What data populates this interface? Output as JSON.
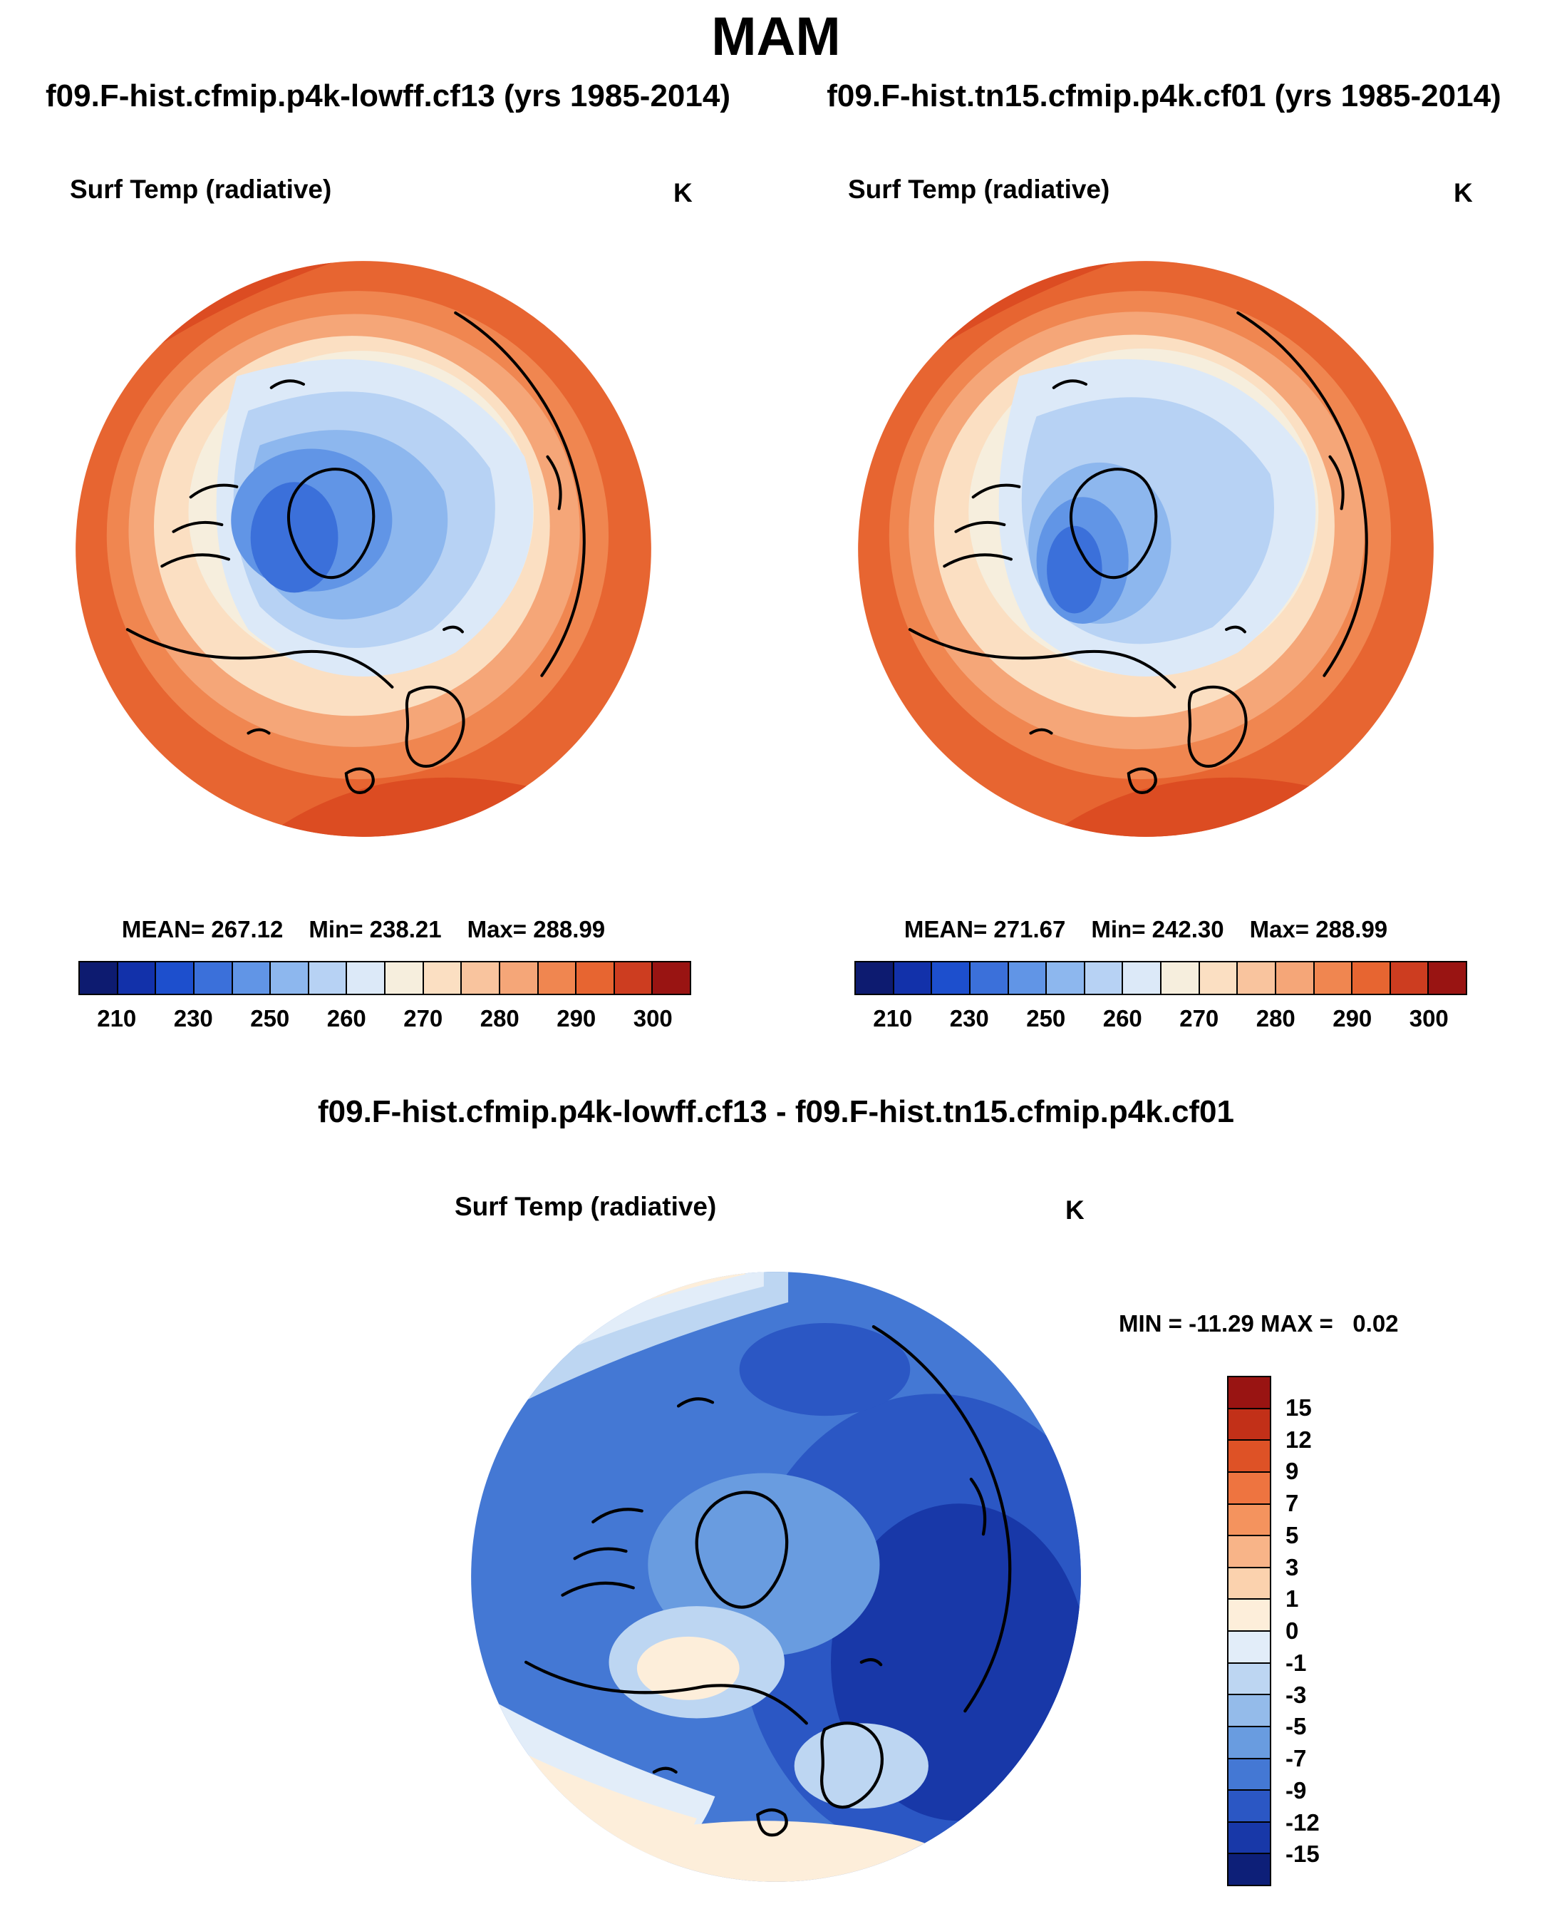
{
  "page": {
    "title": "MAM"
  },
  "left_panel": {
    "subtitle": "f09.F-hist.cfmip.p4k-lowff.cf13 (yrs 1985-2014)",
    "field": "Surf Temp (radiative)",
    "units": "K",
    "mean": "MEAN= 267.12",
    "min": "Min= 238.21",
    "max": "Max= 288.99"
  },
  "right_panel": {
    "subtitle": "f09.F-hist.tn15.cfmip.p4k.cf01 (yrs 1985-2014)",
    "field": "Surf Temp (radiative)",
    "units": "K",
    "mean": "MEAN= 271.67",
    "min": "Min= 242.30",
    "max": "Max= 288.99"
  },
  "diff_panel": {
    "title": "f09.F-hist.cfmip.p4k-lowff.cf13 - f09.F-hist.tn15.cfmip.p4k.cf01",
    "field": "Surf Temp (radiative)",
    "units": "K",
    "min": "MIN = -11.29",
    "max": "MAX =   0.02"
  },
  "temp_colorbar": {
    "ticks": [
      "210",
      "230",
      "250",
      "260",
      "270",
      "280",
      "290",
      "300"
    ],
    "colors": [
      "#0d1b70",
      "#1231aa",
      "#1d4fcd",
      "#3b70da",
      "#6195e6",
      "#8db7ee",
      "#b7d2f4",
      "#dce9f8",
      "#f6eedd",
      "#fbdfc2",
      "#f9c49e",
      "#f5a678",
      "#f08650",
      "#e76531",
      "#cd3d20",
      "#991412"
    ]
  },
  "diff_colorbar": {
    "ticks": [
      "15",
      "12",
      "9",
      "7",
      "5",
      "3",
      "1",
      "0",
      "-1",
      "-3",
      "-5",
      "-7",
      "-9",
      "-12",
      "-15"
    ],
    "colors": [
      "#991412",
      "#c23018",
      "#de5226",
      "#ee7440",
      "#f4935e",
      "#f8b488",
      "#fbd2ae",
      "#fdeeda",
      "#e2edf9",
      "#bdd6f2",
      "#94bbea",
      "#699ce0",
      "#4478d4",
      "#2b57c4",
      "#1838a8",
      "#0d1f78"
    ]
  },
  "chart_data": [
    {
      "type": "heatmap",
      "subtype": "polar-stereographic-map",
      "season": "MAM",
      "title": "f09.F-hist.cfmip.p4k-lowff.cf13 (yrs 1985-2014)",
      "field": "Surf Temp (radiative)",
      "units": "K",
      "stats": {
        "mean": 267.12,
        "min": 238.21,
        "max": 288.99
      },
      "colorbar": {
        "orientation": "horizontal",
        "ticks": [
          210,
          230,
          250,
          260,
          270,
          280,
          290,
          300
        ],
        "colors": [
          "#0d1b70",
          "#1231aa",
          "#1d4fcd",
          "#3b70da",
          "#6195e6",
          "#8db7ee",
          "#b7d2f4",
          "#dce9f8",
          "#f6eedd",
          "#fbdfc2",
          "#f9c49e",
          "#f5a678",
          "#f08650",
          "#e76531",
          "#cd3d20",
          "#991412"
        ]
      },
      "description": "Arctic polar map: cold (blue) values over central Arctic Ocean and Greenland, warm (orange/red) values over surrounding oceans and continents"
    },
    {
      "type": "heatmap",
      "subtype": "polar-stereographic-map",
      "season": "MAM",
      "title": "f09.F-hist.tn15.cfmip.p4k.cf01 (yrs 1985-2014)",
      "field": "Surf Temp (radiative)",
      "units": "K",
      "stats": {
        "mean": 271.67,
        "min": 242.3,
        "max": 288.99
      },
      "colorbar": {
        "orientation": "horizontal",
        "ticks": [
          210,
          230,
          250,
          260,
          270,
          280,
          290,
          300
        ],
        "colors": [
          "#0d1b70",
          "#1231aa",
          "#1d4fcd",
          "#3b70da",
          "#6195e6",
          "#8db7ee",
          "#b7d2f4",
          "#dce9f8",
          "#f6eedd",
          "#fbdfc2",
          "#f9c49e",
          "#f5a678",
          "#f08650",
          "#e76531",
          "#cd3d20",
          "#991412"
        ]
      },
      "description": "Arctic polar map: generally warmer than left panel; lighter blues over central Arctic, orange/red over surrounding regions"
    },
    {
      "type": "heatmap",
      "subtype": "polar-stereographic-map",
      "season": "MAM",
      "title": "f09.F-hist.cfmip.p4k-lowff.cf13 - f09.F-hist.tn15.cfmip.p4k.cf01",
      "field": "Surf Temp (radiative)",
      "units": "K",
      "stats": {
        "min": -11.29,
        "max": 0.02
      },
      "colorbar": {
        "orientation": "vertical",
        "ticks": [
          15,
          12,
          9,
          7,
          5,
          3,
          1,
          0,
          -1,
          -3,
          -5,
          -7,
          -9,
          -12,
          -15
        ],
        "colors": [
          "#991412",
          "#c23018",
          "#de5226",
          "#ee7440",
          "#f4935e",
          "#f8b488",
          "#fbd2ae",
          "#fdeeda",
          "#e2edf9",
          "#bdd6f2",
          "#94bbea",
          "#699ce0",
          "#4478d4",
          "#2b57c4",
          "#1838a8",
          "#0d1f78"
        ]
      },
      "description": "Difference map: almost entirely negative (blue), strongest cooling over Barents/Kara seas and eastern Arctic, near-zero (cream) at low-latitude edges"
    }
  ]
}
